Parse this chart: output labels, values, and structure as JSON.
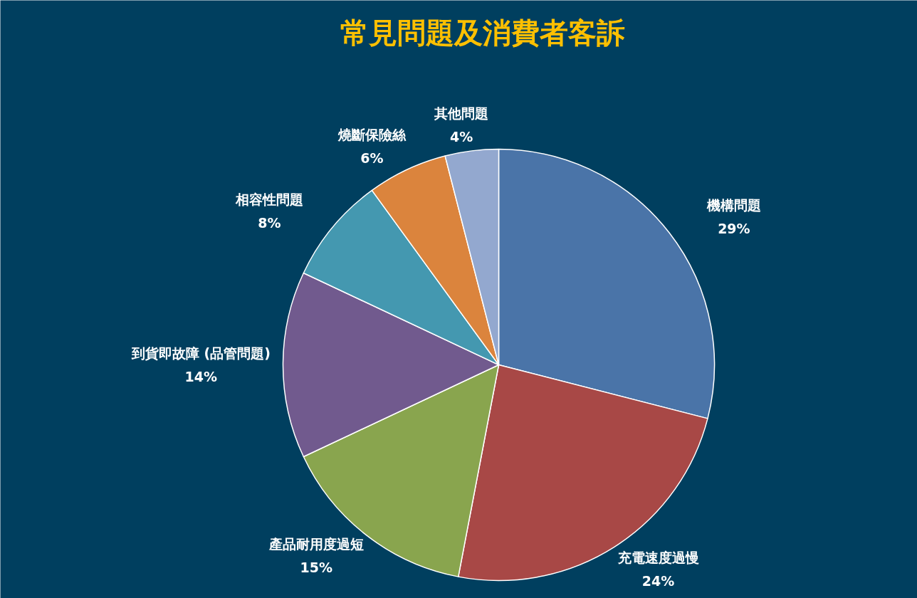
{
  "chart_data": {
    "type": "pie",
    "title": "常見問題及消費者客訴",
    "categories": [
      "機構問題",
      "充電速度過慢",
      "產品耐用度過短",
      "到貨即故障 (品管問題)",
      "相容性問題",
      "燒斷保險絲",
      "其他問題"
    ],
    "values": [
      29,
      24,
      15,
      14,
      8,
      6,
      4
    ],
    "value_labels": [
      "29%",
      "24%",
      "15%",
      "14%",
      "8%",
      "6%",
      "4%"
    ],
    "colors": [
      "#4a74a8",
      "#a84846",
      "#89a54e",
      "#715a8e",
      "#4498b0",
      "#db843d",
      "#93a8cf"
    ]
  }
}
